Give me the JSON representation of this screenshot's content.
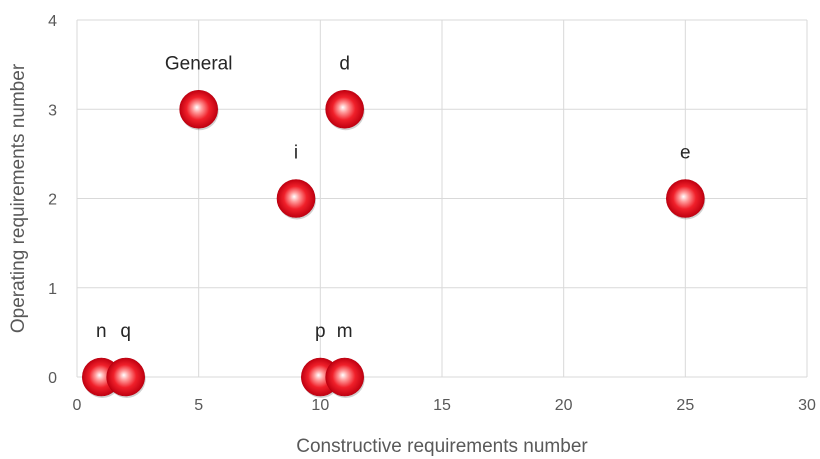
{
  "chart_data": {
    "type": "scatter",
    "title": "",
    "xlabel": "Constructive requirements number",
    "ylabel": "Operating requirements number",
    "xlim": [
      0,
      30
    ],
    "ylim": [
      0,
      4
    ],
    "xticks": [
      "0",
      "5",
      "10",
      "15",
      "20",
      "25",
      "30"
    ],
    "yticks": [
      "0",
      "1",
      "2",
      "3",
      "4"
    ],
    "grid": true,
    "marker_color": "#e8001c",
    "points": [
      {
        "label": "General",
        "x": 5,
        "y": 3
      },
      {
        "label": "d",
        "x": 11,
        "y": 3
      },
      {
        "label": "i",
        "x": 9,
        "y": 2
      },
      {
        "label": "e",
        "x": 25,
        "y": 2
      },
      {
        "label": "n",
        "x": 1,
        "y": 0
      },
      {
        "label": "q",
        "x": 2,
        "y": 0
      },
      {
        "label": "p",
        "x": 10,
        "y": 0
      },
      {
        "label": "m",
        "x": 11,
        "y": 0
      }
    ]
  }
}
